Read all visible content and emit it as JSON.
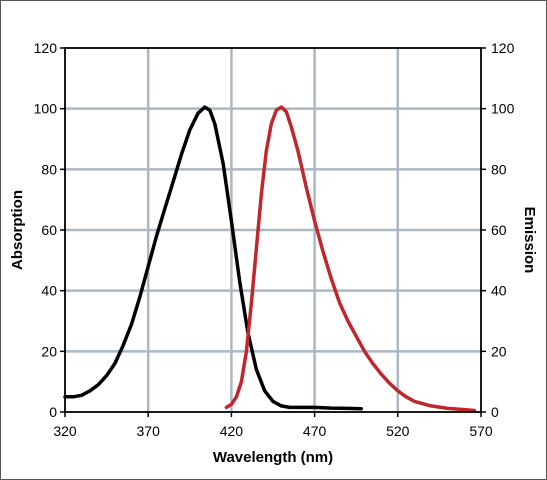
{
  "chart_data": {
    "type": "line",
    "title": "",
    "xlabel": "Wavelength (nm)",
    "ylabel": "Absorption",
    "y2label": "Emission",
    "xlim": [
      320,
      570
    ],
    "ylim": [
      0,
      120
    ],
    "y2lim": [
      0,
      120
    ],
    "xticks": [
      320,
      370,
      420,
      470,
      520,
      570
    ],
    "yticks": [
      0,
      20,
      40,
      60,
      80,
      100,
      120
    ],
    "y2ticks": [
      0,
      20,
      40,
      60,
      80,
      100,
      120
    ],
    "grid": true,
    "series": [
      {
        "axis": "left",
        "color": "#000000",
        "points": [
          [
            320,
            5
          ],
          [
            325,
            5
          ],
          [
            330,
            5.5
          ],
          [
            335,
            7
          ],
          [
            340,
            9
          ],
          [
            345,
            12
          ],
          [
            350,
            16
          ],
          [
            355,
            22
          ],
          [
            360,
            29
          ],
          [
            365,
            38
          ],
          [
            370,
            48
          ],
          [
            375,
            58
          ],
          [
            380,
            67
          ],
          [
            385,
            76
          ],
          [
            390,
            85
          ],
          [
            395,
            93
          ],
          [
            400,
            98.5
          ],
          [
            404,
            100.5
          ],
          [
            407,
            99.5
          ],
          [
            410,
            95
          ],
          [
            415,
            82
          ],
          [
            420,
            63
          ],
          [
            425,
            43
          ],
          [
            430,
            26
          ],
          [
            435,
            14
          ],
          [
            440,
            7
          ],
          [
            445,
            3.5
          ],
          [
            450,
            2
          ],
          [
            455,
            1.5
          ],
          [
            460,
            1.5
          ],
          [
            470,
            1.5
          ],
          [
            480,
            1.3
          ],
          [
            490,
            1.2
          ],
          [
            498,
            1.1
          ]
        ]
      },
      {
        "axis": "right",
        "color": "#c0272d",
        "points": [
          [
            417,
            1.5
          ],
          [
            420,
            2.5
          ],
          [
            423,
            5
          ],
          [
            426,
            10
          ],
          [
            429,
            20
          ],
          [
            432,
            36
          ],
          [
            435,
            54
          ],
          [
            438,
            72
          ],
          [
            441,
            86
          ],
          [
            444,
            95
          ],
          [
            447,
            99.5
          ],
          [
            450,
            100.5
          ],
          [
            453,
            99
          ],
          [
            456,
            94
          ],
          [
            460,
            86
          ],
          [
            465,
            74
          ],
          [
            470,
            63
          ],
          [
            475,
            53
          ],
          [
            480,
            44
          ],
          [
            485,
            36
          ],
          [
            490,
            30
          ],
          [
            495,
            25
          ],
          [
            500,
            20
          ],
          [
            505,
            16
          ],
          [
            510,
            12.5
          ],
          [
            515,
            9.5
          ],
          [
            520,
            7
          ],
          [
            525,
            5
          ],
          [
            530,
            3.5
          ],
          [
            540,
            2
          ],
          [
            550,
            1.2
          ],
          [
            560,
            0.8
          ],
          [
            566,
            0.5
          ]
        ]
      }
    ]
  }
}
